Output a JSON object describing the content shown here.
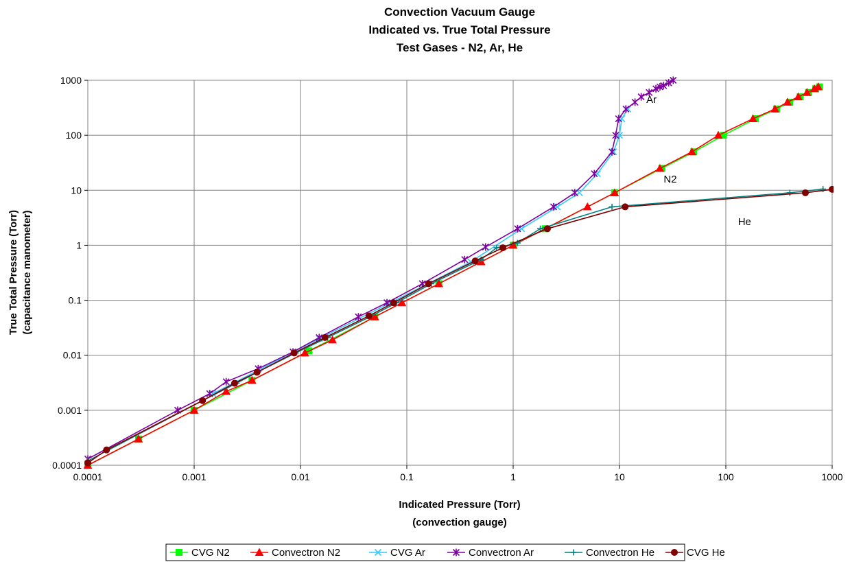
{
  "chart_data": {
    "type": "line",
    "title": [
      "Convection Vacuum Gauge",
      "Indicated vs. True Total Pressure",
      "Test Gases - N2, Ar, He"
    ],
    "xlabel": [
      "Indicated Pressure (Torr)",
      "(convection gauge)"
    ],
    "ylabel": [
      "True Total Pressure (Torr)",
      "(capacitance manometer)"
    ],
    "x_scale": "log",
    "y_scale": "log",
    "xlim": [
      0.0001,
      1000
    ],
    "ylim": [
      0.0001,
      1000
    ],
    "x_ticks": [
      0.0001,
      0.001,
      0.01,
      0.1,
      1,
      10,
      100,
      1000
    ],
    "y_ticks": [
      0.0001,
      0.001,
      0.01,
      0.1,
      1,
      10,
      100,
      1000
    ],
    "x_tick_labels": [
      "0.0001",
      "0.001",
      "0.01",
      "0.1",
      "1",
      "10",
      "100",
      "1000"
    ],
    "y_tick_labels": [
      "0.0001",
      "0.001",
      "0.01",
      "0.1",
      "1",
      "10",
      "100",
      "1000"
    ],
    "grid": true,
    "legend_position": "bottom",
    "annotations": [
      {
        "text": "Ar",
        "x": 20,
        "y": 450
      },
      {
        "text": "N2",
        "x": 30,
        "y": 16
      },
      {
        "text": "He",
        "x": 150,
        "y": 2.7
      }
    ],
    "series": [
      {
        "name": "CVG N2",
        "color": "#00ff00",
        "marker": "square",
        "x": [
          0.0001,
          0.0003,
          0.001,
          0.0035,
          0.012,
          0.05,
          0.2,
          1,
          2,
          9,
          25,
          50,
          95,
          190,
          300,
          400,
          500,
          600,
          700,
          760
        ],
        "y": [
          0.0001,
          0.0003,
          0.001,
          0.0035,
          0.012,
          0.05,
          0.2,
          1,
          2,
          9,
          25,
          50,
          100,
          200,
          300,
          400,
          500,
          600,
          700,
          760
        ]
      },
      {
        "name": "Convectron N2",
        "color": "#ff0000",
        "marker": "triangle",
        "x": [
          0.0001,
          0.0003,
          0.001,
          0.002,
          0.0035,
          0.011,
          0.02,
          0.05,
          0.09,
          0.2,
          0.5,
          1,
          5,
          9,
          24,
          48,
          85,
          180,
          290,
          380,
          480,
          580,
          680,
          740
        ],
        "y": [
          0.0001,
          0.0003,
          0.001,
          0.0022,
          0.0035,
          0.011,
          0.019,
          0.05,
          0.09,
          0.2,
          0.5,
          1,
          5,
          9,
          25,
          50,
          100,
          200,
          300,
          400,
          500,
          600,
          700,
          760
        ]
      },
      {
        "name": "CVG Ar",
        "color": "#33ccff",
        "marker": "x",
        "x": [
          0.0015,
          0.015,
          0.07,
          0.4,
          1.2,
          2.6,
          4.2,
          6.2,
          8.8,
          10,
          10.5,
          12
        ],
        "y": [
          0.002,
          0.02,
          0.09,
          0.5,
          2,
          5,
          9,
          20,
          50,
          100,
          200,
          300
        ]
      },
      {
        "name": "Convectron Ar",
        "color": "#7f00a0",
        "marker": "star",
        "x": [
          0.0001,
          0.0007,
          0.0014,
          0.002,
          0.004,
          0.0085,
          0.015,
          0.035,
          0.065,
          0.14,
          0.35,
          0.55,
          1.1,
          2.4,
          3.8,
          5.8,
          8.5,
          9.2,
          9.8,
          11.5,
          14,
          16,
          19,
          22,
          24,
          26,
          29,
          32
        ],
        "y": [
          0.00013,
          0.001,
          0.002,
          0.0033,
          0.0057,
          0.0115,
          0.021,
          0.05,
          0.09,
          0.2,
          0.55,
          0.93,
          2,
          5,
          9,
          20,
          50,
          100,
          200,
          300,
          400,
          500,
          600,
          700,
          760,
          800,
          900,
          1000
        ]
      },
      {
        "name": "Convectron He",
        "color": "#007f7f",
        "marker": "plus",
        "x": [
          0.0001,
          0.0012,
          0.0025,
          0.004,
          0.009,
          0.018,
          0.045,
          0.08,
          0.17,
          0.5,
          0.7,
          1.1,
          1.8,
          8.5,
          400,
          820
        ],
        "y": [
          0.00012,
          0.0015,
          0.0031,
          0.005,
          0.011,
          0.021,
          0.05,
          0.09,
          0.2,
          0.55,
          0.9,
          1.1,
          2,
          5,
          9,
          10.5
        ]
      },
      {
        "name": "CVG He",
        "color": "#800000",
        "marker": "circle",
        "x": [
          0.0001,
          0.00015,
          0.0012,
          0.0024,
          0.0039,
          0.0087,
          0.017,
          0.044,
          0.075,
          0.16,
          0.44,
          0.8,
          2.1,
          11.3,
          560,
          1000
        ],
        "y": [
          0.00011,
          0.00019,
          0.0015,
          0.0031,
          0.0049,
          0.011,
          0.021,
          0.052,
          0.09,
          0.2,
          0.52,
          0.9,
          2,
          5,
          9,
          10.4
        ]
      }
    ]
  }
}
